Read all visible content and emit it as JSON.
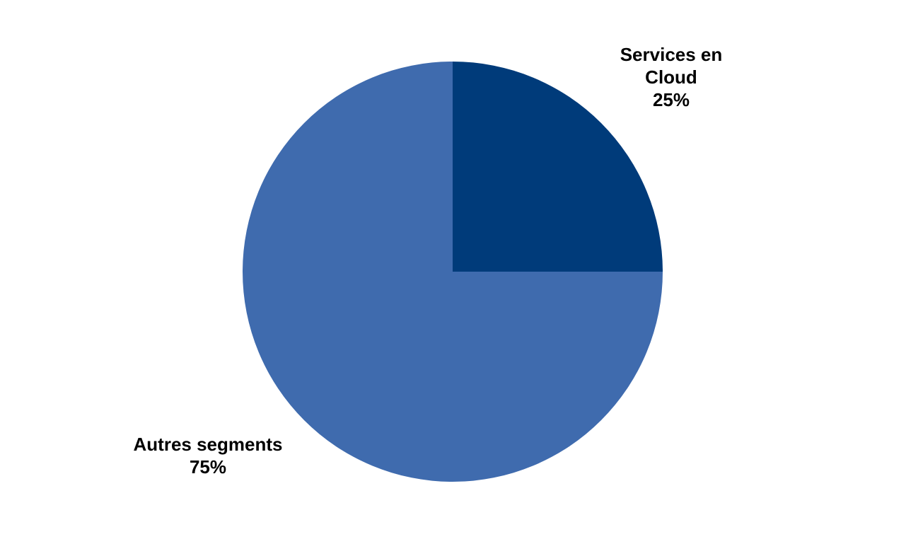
{
  "chart_data": {
    "type": "pie",
    "title": "",
    "slices": [
      {
        "label_lines": [
          "Services en",
          "Cloud"
        ],
        "pct_label": "25%",
        "value": 25,
        "color": "#003b7a"
      },
      {
        "label_lines": [
          "Autres segments"
        ],
        "pct_label": "75%",
        "value": 75,
        "color": "#3f6bae"
      }
    ]
  }
}
